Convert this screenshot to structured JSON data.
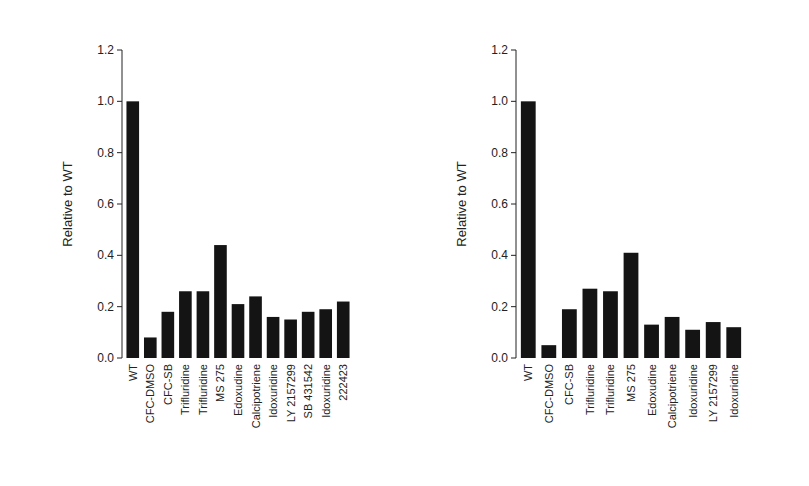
{
  "chart_data": [
    {
      "type": "bar",
      "y_label": "Relative to WT",
      "categories": [
        "WT",
        "CFC-DMSO",
        "CFC-SB",
        "Trifluridine",
        "Trifluridine",
        "MS 275",
        "Edoxudine",
        "Calcipotriene",
        "Idoxuridine",
        "LY 2157299",
        "SB 431542",
        "Idoxuridine",
        "222423"
      ],
      "values": [
        1.0,
        0.08,
        0.18,
        0.26,
        0.26,
        0.44,
        0.21,
        0.24,
        0.16,
        0.15,
        0.18,
        0.19,
        0.22
      ],
      "color": "#141414",
      "ylim": [
        0,
        1.2
      ],
      "yticks": [
        {
          "value": 0,
          "label": "0.0"
        },
        0.2,
        0.4,
        0.6,
        0.8,
        {
          "value": 1,
          "label": "1.0"
        },
        1.2
      ],
      "grid": false
    },
    {
      "type": "bar",
      "y_label": "Relative to WT",
      "categories": [
        "WT",
        "CFC-DMSO",
        "CFC-SB",
        "Trifluridine",
        "Trifluridine",
        "MS 275",
        "Edoxudine",
        "Calcipotriene",
        "Idoxuridine",
        "LY 2157299",
        "Idoxuridine"
      ],
      "values": [
        1.0,
        0.05,
        0.19,
        0.27,
        0.26,
        0.41,
        0.13,
        0.16,
        0.11,
        0.14,
        0.12
      ],
      "color": "#141414",
      "ylim": [
        0,
        1.2
      ],
      "yticks": [
        {
          "value": 0,
          "label": "0.0"
        },
        0.2,
        0.4,
        0.6,
        0.8,
        {
          "value": 1,
          "label": "1.0"
        },
        1.2
      ],
      "grid": false
    }
  ]
}
